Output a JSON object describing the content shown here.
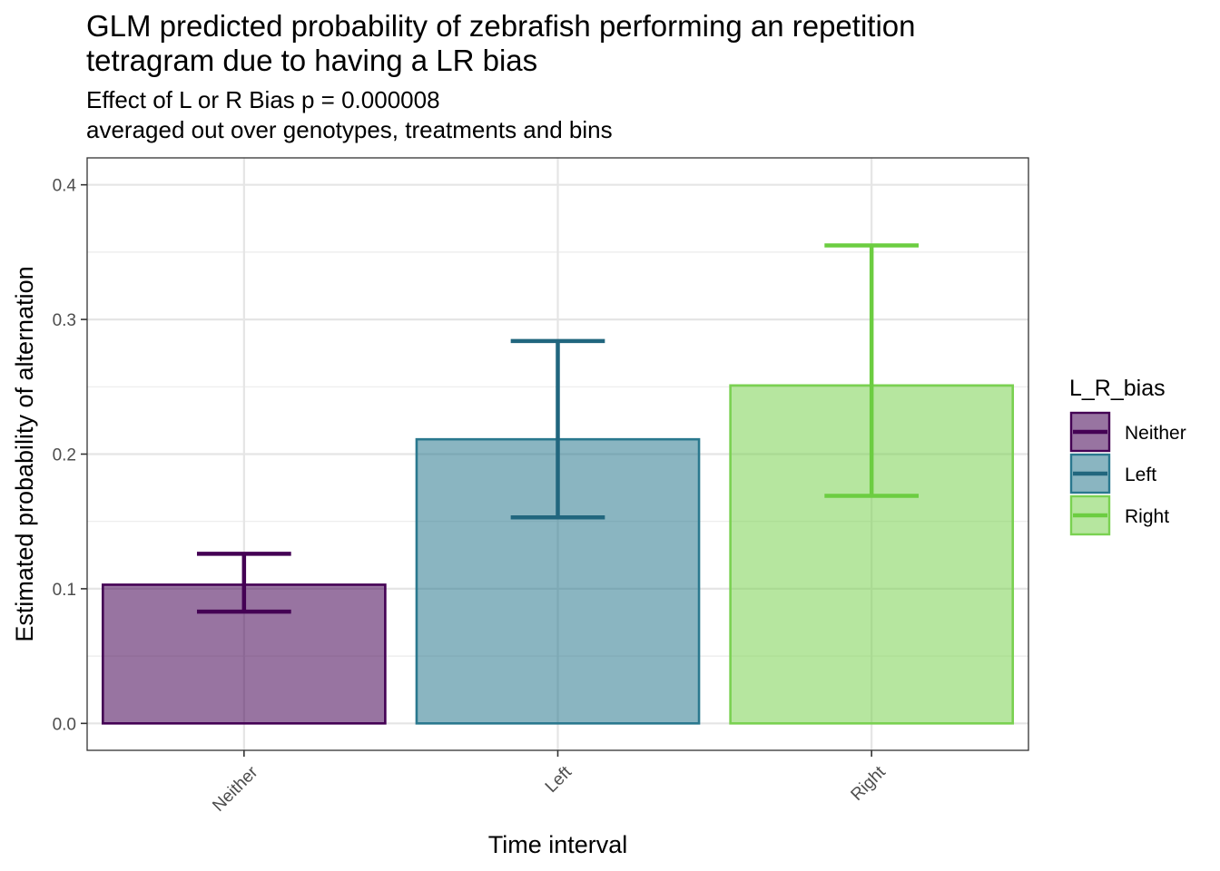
{
  "chart_data": {
    "type": "bar",
    "title": "GLM predicted probability of zebrafish performing an repetition\ntetragram due to having a LR bias",
    "subtitle": "Effect of L or R Bias p = 0.000008\naveraged out over genotypes, treatments and bins",
    "xlabel": "Time interval",
    "ylabel": "Estimated probability of alternation",
    "categories": [
      "Neither",
      "Left",
      "Right"
    ],
    "values": [
      0.103,
      0.211,
      0.251
    ],
    "error_lower": [
      0.083,
      0.153,
      0.169
    ],
    "error_upper": [
      0.126,
      0.284,
      0.355
    ],
    "ylim": [
      -0.02,
      0.42
    ],
    "yticks": [
      0.0,
      0.1,
      0.2,
      0.3,
      0.4
    ],
    "ytick_labels": [
      "0.0",
      "0.1",
      "0.2",
      "0.3",
      "0.4"
    ],
    "grid": true,
    "legend": {
      "title": "L_R_bias",
      "position": "right",
      "entries": [
        "Neither",
        "Left",
        "Right"
      ]
    },
    "colors": [
      "#440154",
      "#2a788e",
      "#7ad151"
    ],
    "errorbar_colors": [
      "#440154",
      "#21667e",
      "#6ccd41"
    ]
  }
}
